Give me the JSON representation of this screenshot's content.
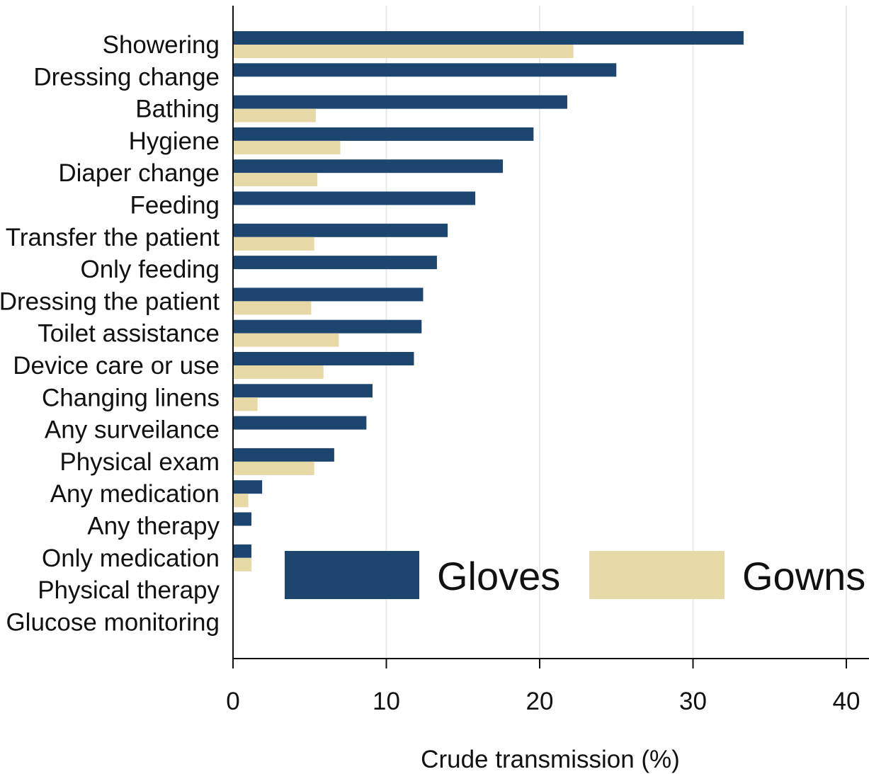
{
  "chart_data": {
    "type": "bar",
    "orientation": "horizontal",
    "categories": [
      "Showering",
      "Dressing change",
      "Bathing",
      "Hygiene",
      "Diaper change",
      "Feeding",
      "Transfer the patient",
      "Only feeding",
      "Dressing the patient",
      "Toilet assistance",
      "Device care or use",
      "Changing linens",
      "Any surveilance",
      "Physical exam",
      "Any medication",
      "Any therapy",
      "Only medication",
      "Physical therapy",
      "Glucose monitoring"
    ],
    "series": [
      {
        "name": "Gloves",
        "color": "#1c4670",
        "values": [
          33.3,
          25.0,
          21.8,
          19.6,
          17.6,
          15.8,
          14.0,
          13.3,
          12.4,
          12.3,
          11.8,
          9.1,
          8.7,
          6.6,
          1.9,
          1.2,
          1.2,
          0,
          0
        ]
      },
      {
        "name": "Gowns",
        "color": "#e6d9a5",
        "values": [
          22.2,
          0,
          5.4,
          7.0,
          5.5,
          0,
          5.3,
          0,
          5.1,
          6.9,
          5.9,
          1.6,
          0,
          5.3,
          1.0,
          0,
          1.2,
          0,
          0
        ]
      }
    ],
    "xlabel": "Crude transmission (%)",
    "ylabel": "",
    "xlim": [
      0,
      40
    ],
    "xticks": [
      "0",
      "10",
      "20",
      "30",
      "40"
    ],
    "grid": "vertical",
    "legend_position": "bottom-right"
  }
}
